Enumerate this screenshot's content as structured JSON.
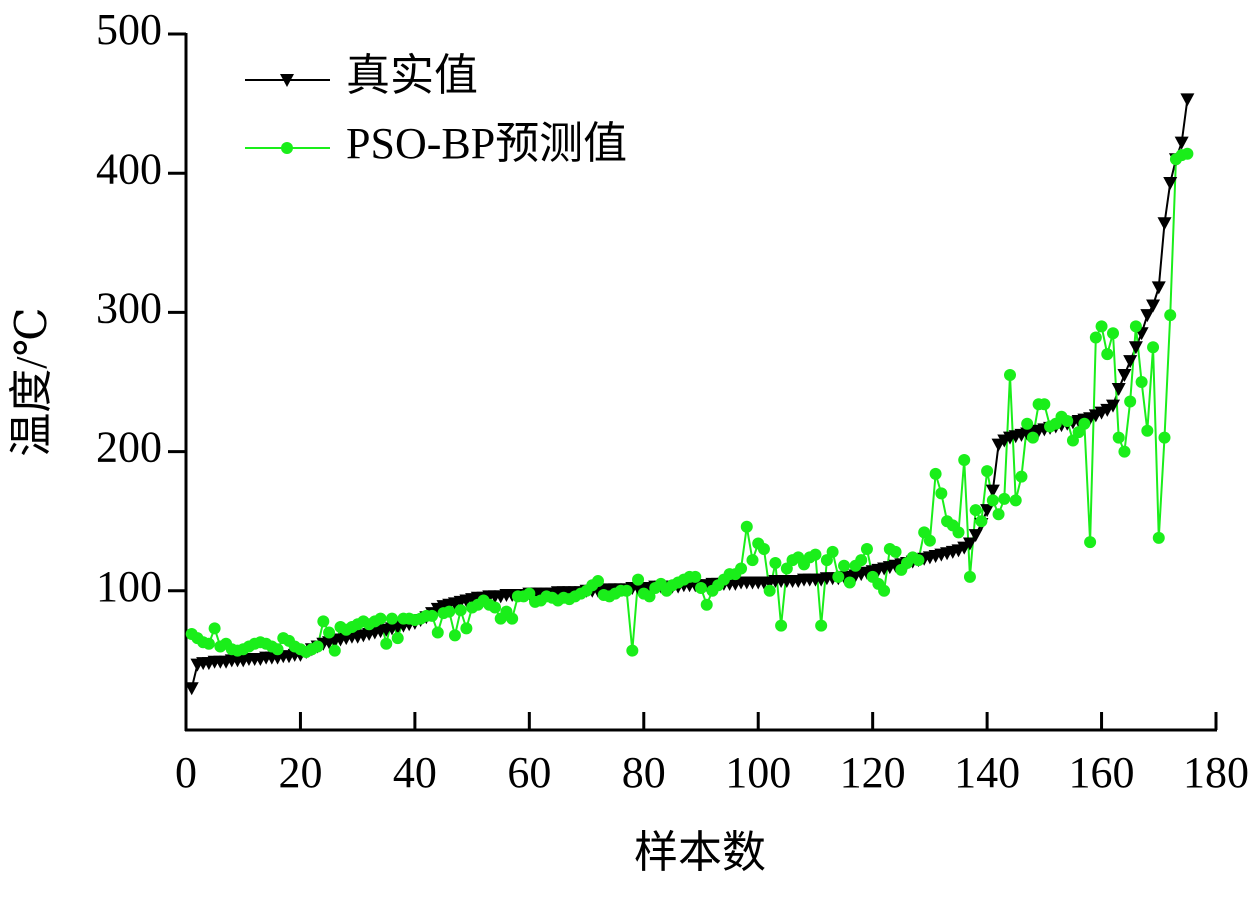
{
  "chart_data": {
    "type": "line",
    "xlabel": "样本数",
    "ylabel": "温度/℃",
    "xlim": [
      0,
      180
    ],
    "ylim": [
      0,
      500
    ],
    "xticks": [
      0,
      20,
      40,
      60,
      80,
      100,
      120,
      140,
      160,
      180
    ],
    "yticks": [
      100,
      200,
      300,
      400,
      500
    ],
    "legend": "upper left",
    "x": [
      1,
      2,
      3,
      4,
      5,
      6,
      7,
      8,
      9,
      10,
      11,
      12,
      13,
      14,
      15,
      16,
      17,
      18,
      19,
      20,
      21,
      22,
      23,
      24,
      25,
      26,
      27,
      28,
      29,
      30,
      31,
      32,
      33,
      34,
      35,
      36,
      37,
      38,
      39,
      40,
      41,
      42,
      43,
      44,
      45,
      46,
      47,
      48,
      49,
      50,
      51,
      52,
      53,
      54,
      55,
      56,
      57,
      58,
      59,
      60,
      61,
      62,
      63,
      64,
      65,
      66,
      67,
      68,
      69,
      70,
      71,
      72,
      73,
      74,
      75,
      76,
      77,
      78,
      79,
      80,
      81,
      82,
      83,
      84,
      85,
      86,
      87,
      88,
      89,
      90,
      91,
      92,
      93,
      94,
      95,
      96,
      97,
      98,
      99,
      100,
      101,
      102,
      103,
      104,
      105,
      106,
      107,
      108,
      109,
      110,
      111,
      112,
      113,
      114,
      115,
      116,
      117,
      118,
      119,
      120,
      121,
      122,
      123,
      124,
      125,
      126,
      127,
      128,
      129,
      130,
      131,
      132,
      133,
      134,
      135,
      136,
      137,
      138,
      139,
      140,
      141,
      142,
      143,
      144,
      145,
      146,
      147,
      148,
      149,
      150,
      151,
      152,
      153,
      154,
      155,
      156,
      157,
      158,
      159,
      160,
      161,
      162,
      163,
      164,
      165,
      166,
      167,
      168,
      169,
      170,
      171,
      172,
      173,
      174,
      175
    ],
    "series": [
      {
        "name": "真实值",
        "color": "#000000",
        "marker": "triangle-down",
        "values": [
          30,
          47,
          48,
          48,
          49,
          49,
          49,
          50,
          50,
          50,
          51,
          51,
          51,
          52,
          52,
          52,
          53,
          53,
          54,
          54,
          56,
          58,
          60,
          62,
          63,
          64,
          65,
          66,
          67,
          67,
          68,
          69,
          70,
          71,
          72,
          73,
          74,
          75,
          76,
          77,
          79,
          81,
          84,
          87,
          89,
          90,
          91,
          92,
          93,
          94,
          95,
          95,
          96,
          96,
          96,
          97,
          97,
          97,
          97,
          98,
          98,
          98,
          98,
          98,
          99,
          99,
          99,
          99,
          99,
          100,
          100,
          100,
          100,
          101,
          101,
          101,
          101,
          102,
          102,
          102,
          102,
          103,
          103,
          103,
          103,
          103,
          104,
          104,
          104,
          104,
          104,
          105,
          105,
          105,
          105,
          105,
          106,
          106,
          106,
          106,
          106,
          106,
          107,
          107,
          107,
          107,
          107,
          108,
          108,
          108,
          108,
          109,
          109,
          109,
          110,
          110,
          111,
          112,
          113,
          114,
          115,
          116,
          117,
          118,
          119,
          120,
          121,
          122,
          123,
          124,
          125,
          126,
          127,
          128,
          129,
          131,
          134,
          140,
          148,
          158,
          172,
          205,
          208,
          210,
          211,
          212,
          213,
          214,
          215,
          216,
          217,
          218,
          219,
          220,
          221,
          222,
          223,
          224,
          226,
          228,
          230,
          233,
          245,
          255,
          265,
          275,
          285,
          298,
          305,
          318,
          364,
          393,
          410,
          422,
          453
        ]
      },
      {
        "name": "PSO-BP预测值",
        "color": "#1aee1a",
        "marker": "circle",
        "values": [
          69,
          66,
          63,
          62,
          73,
          60,
          62,
          58,
          57,
          58,
          60,
          62,
          63,
          62,
          60,
          58,
          66,
          64,
          60,
          58,
          56,
          58,
          60,
          78,
          70,
          57,
          74,
          72,
          74,
          76,
          78,
          76,
          78,
          80,
          62,
          80,
          66,
          80,
          80,
          79,
          80,
          82,
          82,
          70,
          84,
          85,
          68,
          86,
          73,
          88,
          90,
          93,
          90,
          88,
          80,
          85,
          80,
          96,
          96,
          98,
          92,
          93,
          96,
          95,
          93,
          95,
          94,
          96,
          98,
          100,
          104,
          107,
          97,
          96,
          98,
          100,
          100,
          57,
          108,
          98,
          96,
          102,
          105,
          100,
          104,
          106,
          108,
          110,
          110,
          102,
          90,
          100,
          104,
          108,
          112,
          112,
          116,
          146,
          122,
          134,
          130,
          100,
          120,
          75,
          116,
          122,
          124,
          119,
          124,
          126,
          75,
          122,
          128,
          110,
          118,
          106,
          118,
          122,
          130,
          110,
          105,
          100,
          130,
          128,
          115,
          120,
          124,
          122,
          142,
          136,
          184,
          170,
          150,
          147,
          142,
          194,
          110,
          158,
          150,
          186,
          165,
          155,
          166,
          255,
          165,
          182,
          220,
          210,
          234,
          234,
          218,
          220,
          225,
          222,
          208,
          214,
          220,
          135,
          282,
          290,
          270,
          285,
          210,
          200,
          236,
          290,
          250,
          215,
          275,
          138,
          210,
          298,
          410,
          413,
          414
        ]
      }
    ]
  }
}
